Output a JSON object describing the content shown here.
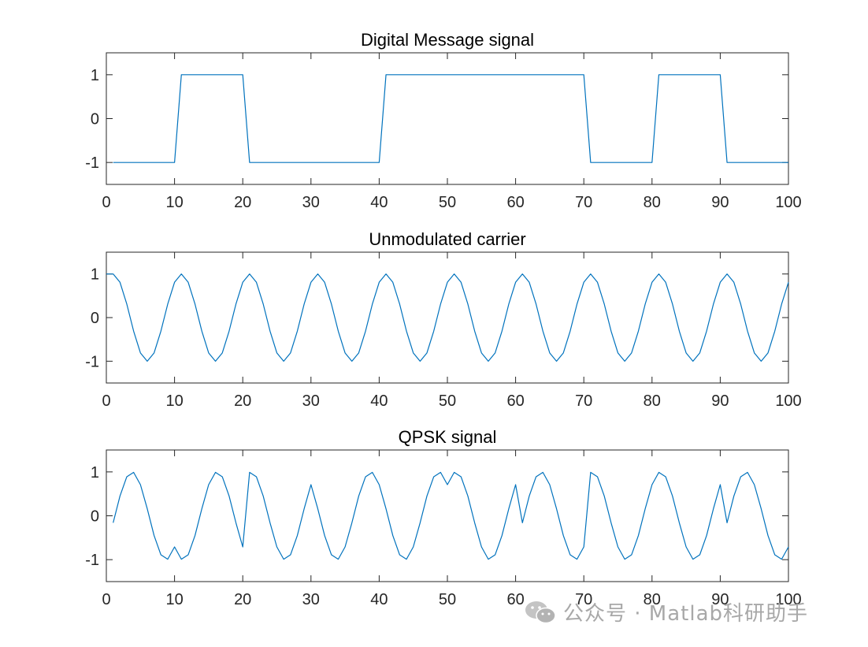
{
  "watermark": {
    "text": "公众号 · Matlab科研助手",
    "icon": "wechat-icon"
  },
  "colors": {
    "line": "#0072BD",
    "axes": "#262626",
    "watermark": "#a8a8a8"
  },
  "chart_data": [
    {
      "type": "line",
      "title": "Digital Message signal",
      "xlabel": "",
      "ylabel": "",
      "xlim": [
        0,
        100
      ],
      "ylim": [
        -1.5,
        1.5
      ],
      "xticks": [
        0,
        10,
        20,
        30,
        40,
        50,
        60,
        70,
        80,
        90,
        100
      ],
      "yticks": [
        1,
        0,
        -1
      ],
      "grid": false,
      "series": [
        {
          "x": [
            1,
            10,
            11,
            20,
            21,
            40,
            41,
            70,
            71,
            80,
            81,
            90,
            91,
            100
          ],
          "values": [
            -1,
            -1,
            1,
            1,
            -1,
            -1,
            1,
            1,
            -1,
            -1,
            1,
            1,
            -1,
            -1
          ]
        }
      ]
    },
    {
      "type": "line",
      "title": "Unmodulated carrier",
      "xlabel": "",
      "ylabel": "",
      "xlim": [
        0,
        100
      ],
      "ylim": [
        -1.5,
        1.5
      ],
      "xticks": [
        0,
        10,
        20,
        30,
        40,
        50,
        60,
        70,
        80,
        90,
        100
      ],
      "yticks": [
        1,
        0,
        -1
      ],
      "grid": false,
      "series": [
        {
          "x": [
            0,
            1,
            2,
            3,
            4,
            5,
            6,
            7,
            8,
            9,
            10,
            11,
            12,
            13,
            14,
            15,
            16,
            17,
            18,
            19,
            20,
            21,
            22,
            23,
            24,
            25,
            26,
            27,
            28,
            29,
            30,
            31,
            32,
            33,
            34,
            35,
            36,
            37,
            38,
            39,
            40,
            41,
            42,
            43,
            44,
            45,
            46,
            47,
            48,
            49,
            50,
            51,
            52,
            53,
            54,
            55,
            56,
            57,
            58,
            59,
            60,
            61,
            62,
            63,
            64,
            65,
            66,
            67,
            68,
            69,
            70,
            71,
            72,
            73,
            74,
            75,
            76,
            77,
            78,
            79,
            80,
            81,
            82,
            83,
            84,
            85,
            86,
            87,
            88,
            89,
            90,
            91,
            92,
            93,
            94,
            95,
            96,
            97,
            98,
            99,
            100
          ],
          "values": [
            1,
            1,
            0.81,
            0.31,
            -0.31,
            -0.81,
            -1,
            -0.81,
            -0.31,
            0.31,
            0.81,
            1,
            0.81,
            0.31,
            -0.31,
            -0.81,
            -1,
            -0.81,
            -0.31,
            0.31,
            0.81,
            1,
            0.81,
            0.31,
            -0.31,
            -0.81,
            -1,
            -0.81,
            -0.31,
            0.31,
            0.81,
            1,
            0.81,
            0.31,
            -0.31,
            -0.81,
            -1,
            -0.81,
            -0.31,
            0.31,
            0.81,
            1,
            0.81,
            0.31,
            -0.31,
            -0.81,
            -1,
            -0.81,
            -0.31,
            0.31,
            0.81,
            1,
            0.81,
            0.31,
            -0.31,
            -0.81,
            -1,
            -0.81,
            -0.31,
            0.31,
            0.81,
            1,
            0.81,
            0.31,
            -0.31,
            -0.81,
            -1,
            -0.81,
            -0.31,
            0.31,
            0.81,
            1,
            0.81,
            0.31,
            -0.31,
            -0.81,
            -1,
            -0.81,
            -0.31,
            0.31,
            0.81,
            1,
            0.81,
            0.31,
            -0.31,
            -0.81,
            -1,
            -0.81,
            -0.31,
            0.31,
            0.81,
            1,
            0.81,
            0.31,
            -0.31,
            -0.81,
            -1,
            -0.81,
            -0.31,
            0.31,
            0.81
          ]
        }
      ]
    },
    {
      "type": "line",
      "title": "QPSK signal",
      "xlabel": "",
      "ylabel": "",
      "xlim": [
        0,
        100
      ],
      "ylim": [
        -1.5,
        1.5
      ],
      "xticks": [
        0,
        10,
        20,
        30,
        40,
        50,
        60,
        70,
        80,
        90,
        100
      ],
      "yticks": [
        1,
        0,
        -1
      ],
      "grid": false,
      "series": [
        {
          "x": [
            1,
            2,
            3,
            4,
            5,
            6,
            7,
            8,
            9,
            10,
            11,
            12,
            13,
            14,
            15,
            16,
            17,
            18,
            19,
            20,
            21,
            22,
            23,
            24,
            25,
            26,
            27,
            28,
            29,
            30,
            31,
            32,
            33,
            34,
            35,
            36,
            37,
            38,
            39,
            40,
            41,
            42,
            43,
            44,
            45,
            46,
            47,
            48,
            49,
            50,
            51,
            52,
            53,
            54,
            55,
            56,
            57,
            58,
            59,
            60,
            61,
            62,
            63,
            64,
            65,
            66,
            67,
            68,
            69,
            70,
            71,
            72,
            73,
            74,
            75,
            76,
            77,
            78,
            79,
            80,
            81,
            82,
            83,
            84,
            85,
            86,
            87,
            88,
            89,
            90,
            91,
            92,
            93,
            94,
            95,
            96,
            97,
            98,
            99,
            100
          ],
          "values": [
            -0.16,
            0.45,
            0.89,
            0.99,
            0.71,
            0.16,
            -0.45,
            -0.89,
            -0.99,
            -0.71,
            -0.99,
            -0.89,
            -0.45,
            0.16,
            0.71,
            0.99,
            0.89,
            0.45,
            -0.16,
            -0.71,
            0.99,
            0.89,
            0.45,
            -0.16,
            -0.71,
            -0.99,
            -0.89,
            -0.45,
            0.16,
            0.71,
            0.16,
            -0.45,
            -0.89,
            -0.99,
            -0.71,
            -0.16,
            0.45,
            0.89,
            0.99,
            0.71,
            0.16,
            -0.45,
            -0.89,
            -0.99,
            -0.71,
            -0.16,
            0.45,
            0.89,
            0.99,
            0.71,
            0.99,
            0.89,
            0.45,
            -0.16,
            -0.71,
            -0.99,
            -0.89,
            -0.45,
            0.16,
            0.71,
            -0.16,
            0.45,
            0.89,
            0.99,
            0.71,
            0.16,
            -0.45,
            -0.89,
            -0.99,
            -0.71,
            0.99,
            0.89,
            0.45,
            -0.16,
            -0.71,
            -0.99,
            -0.89,
            -0.45,
            0.16,
            0.71,
            0.99,
            0.89,
            0.45,
            -0.16,
            -0.71,
            -0.99,
            -0.89,
            -0.45,
            0.16,
            0.71,
            -0.16,
            0.45,
            0.89,
            0.99,
            0.71,
            0.16,
            -0.45,
            -0.89,
            -0.99,
            -0.71
          ]
        }
      ]
    }
  ]
}
